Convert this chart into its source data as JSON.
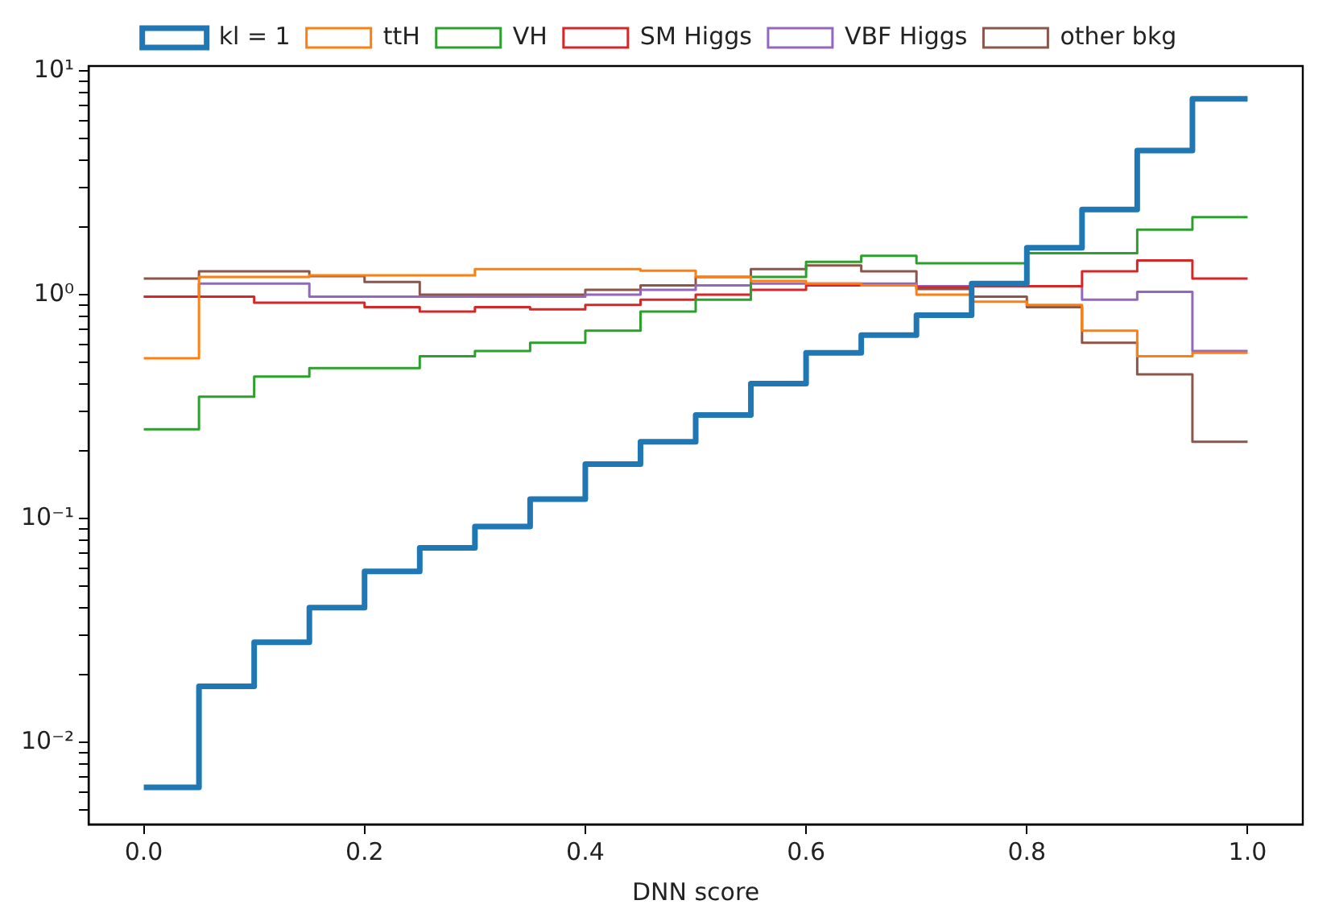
{
  "chart_data": {
    "type": "histogram",
    "xlabel": "DNN score",
    "log": "y",
    "grid": false,
    "legend": "top",
    "bins": [
      0,
      0.05,
      0.1,
      0.15,
      0.2,
      0.25,
      0.3,
      0.35,
      0.4,
      0.45,
      0.5,
      0.55,
      0.6,
      0.65,
      0.7,
      0.75,
      0.8,
      0.85,
      0.9,
      0.95,
      1.0
    ],
    "xlim": [
      -0.05,
      1.05
    ],
    "xticks": [
      {
        "value": 0,
        "label": "0.0"
      },
      0.2,
      0.4,
      0.6,
      0.8,
      {
        "value": 1,
        "label": "1.0"
      }
    ],
    "ylim": [
      0.0043,
      10.5
    ],
    "yticks": [
      {
        "value": 0.005,
        "label": null
      },
      {
        "value": 0.006,
        "label": null
      },
      {
        "value": 0.007,
        "label": null
      },
      {
        "value": 0.008,
        "label": null
      },
      {
        "value": 0.009,
        "label": null
      },
      {
        "value": 0.01,
        "label": "10⁻²"
      },
      {
        "value": 0.02,
        "label": null
      },
      {
        "value": 0.03,
        "label": null
      },
      {
        "value": 0.04,
        "label": null
      },
      {
        "value": 0.05,
        "label": null
      },
      {
        "value": 0.06,
        "label": null
      },
      {
        "value": 0.07,
        "label": null
      },
      {
        "value": 0.08,
        "label": null
      },
      {
        "value": 0.09,
        "label": null
      },
      {
        "value": 0.1,
        "label": "10⁻¹"
      },
      {
        "value": 0.2,
        "label": null
      },
      {
        "value": 0.3,
        "label": null
      },
      {
        "value": 0.4,
        "label": null
      },
      {
        "value": 0.5,
        "label": null
      },
      {
        "value": 0.6,
        "label": null
      },
      {
        "value": 0.7,
        "label": null
      },
      {
        "value": 0.8,
        "label": null
      },
      {
        "value": 0.9,
        "label": null
      },
      {
        "value": 1,
        "label": "10⁰"
      },
      {
        "value": 2,
        "label": null
      },
      {
        "value": 3,
        "label": null
      },
      {
        "value": 4,
        "label": null
      },
      {
        "value": 5,
        "label": null
      },
      {
        "value": 6,
        "label": null
      },
      {
        "value": 7,
        "label": null
      },
      {
        "value": 8,
        "label": null
      },
      {
        "value": 9,
        "label": null
      },
      {
        "value": 10,
        "label": "10¹"
      }
    ],
    "series": [
      {
        "name": "kl = 1",
        "color": "#1f77b4",
        "values": [
          0.0063,
          0.0178,
          0.028,
          0.04,
          0.058,
          0.074,
          0.092,
          0.122,
          0.175,
          0.22,
          0.29,
          0.4,
          0.55,
          0.66,
          0.81,
          1.12,
          1.62,
          2.4,
          4.4,
          7.5
        ]
      },
      {
        "name": "ttH",
        "color": "#ff7f0e",
        "values": [
          0.52,
          1.2,
          1.2,
          1.22,
          1.22,
          1.22,
          1.3,
          1.3,
          1.3,
          1.28,
          1.2,
          1.15,
          1.12,
          1.1,
          1.0,
          0.93,
          0.9,
          0.69,
          0.53,
          0.55
        ]
      },
      {
        "name": "VH",
        "color": "#2ca02c",
        "values": [
          0.25,
          0.35,
          0.43,
          0.47,
          0.47,
          0.53,
          0.56,
          0.61,
          0.69,
          0.84,
          0.95,
          1.2,
          1.4,
          1.49,
          1.38,
          1.38,
          1.53,
          1.53,
          1.95,
          2.22
        ]
      },
      {
        "name": "SM Higgs",
        "color": "#d62728",
        "values": [
          0.98,
          0.98,
          0.92,
          0.92,
          0.88,
          0.84,
          0.88,
          0.86,
          0.9,
          0.95,
          1.0,
          1.05,
          1.1,
          1.1,
          1.08,
          1.09,
          1.09,
          1.27,
          1.42,
          1.18
        ]
      },
      {
        "name": "VBF Higgs",
        "color": "#9467bd",
        "values": [
          0.98,
          1.12,
          1.12,
          0.98,
          0.98,
          0.98,
          0.98,
          0.98,
          1.0,
          1.05,
          1.1,
          1.12,
          1.12,
          1.12,
          1.09,
          1.09,
          1.09,
          0.95,
          1.03,
          0.56
        ]
      },
      {
        "name": "other bkg",
        "color": "#8c564b",
        "values": [
          1.18,
          1.27,
          1.27,
          1.21,
          1.14,
          1.0,
          1.0,
          1.0,
          1.05,
          1.1,
          1.2,
          1.3,
          1.35,
          1.27,
          1.06,
          0.98,
          0.88,
          0.61,
          0.44,
          0.22
        ]
      }
    ]
  }
}
